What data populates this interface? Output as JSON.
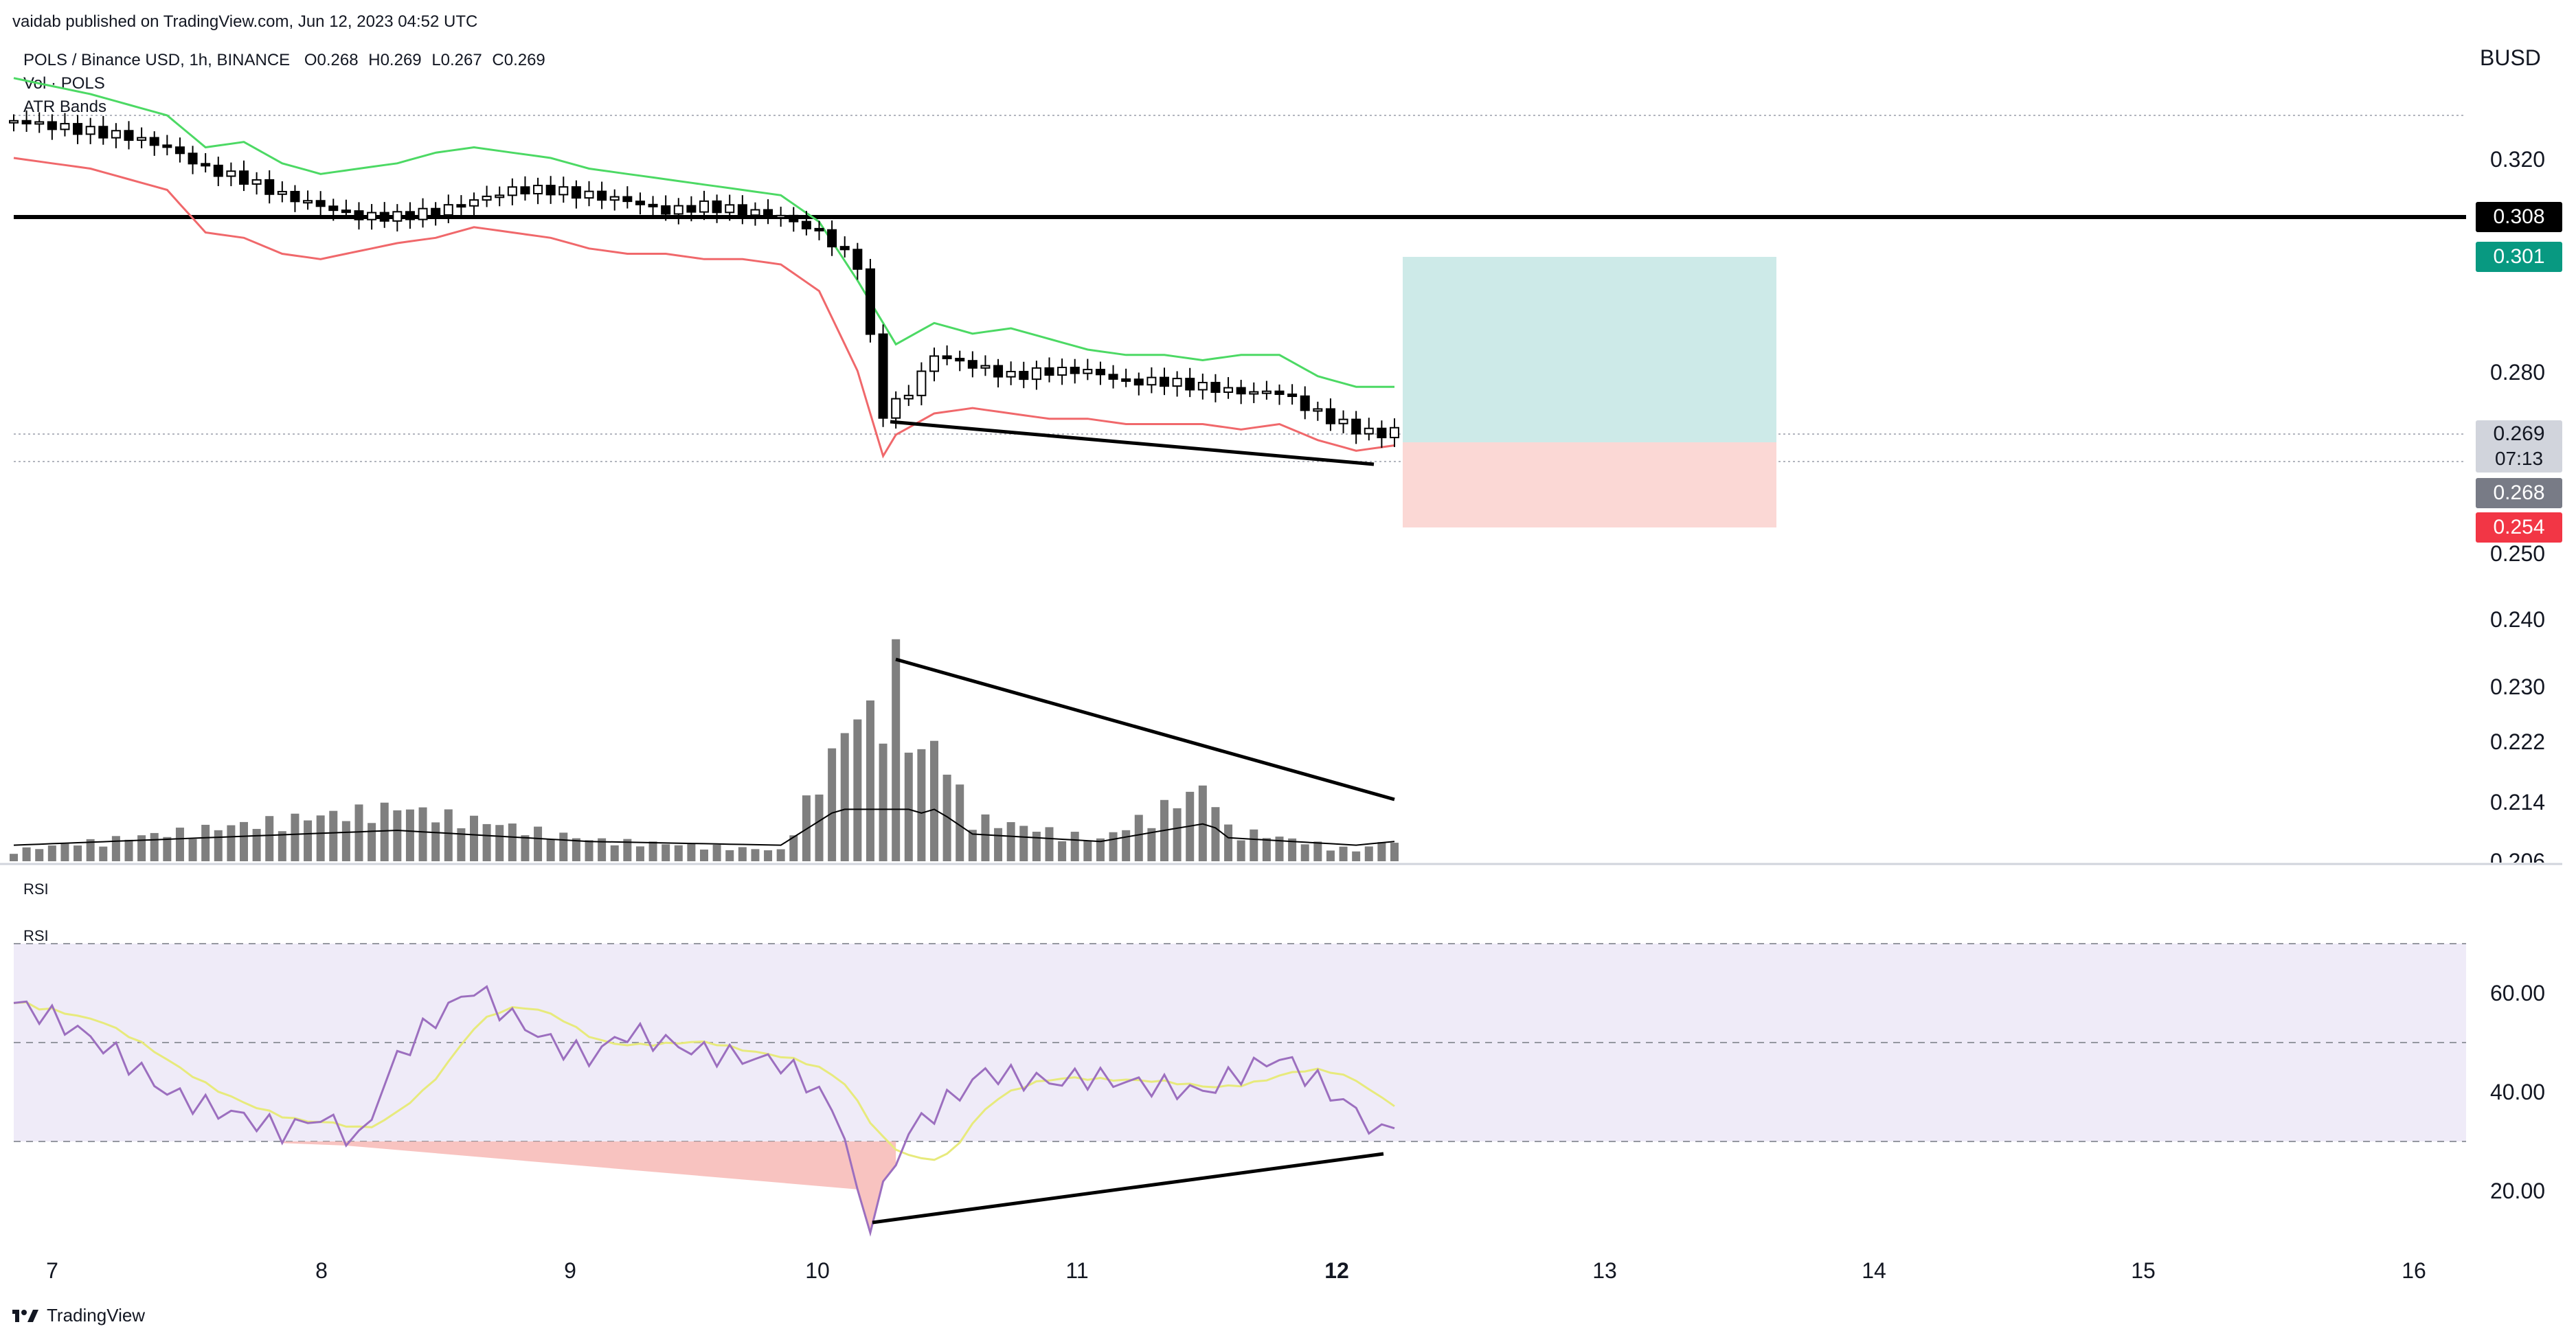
{
  "header": {
    "publisher_line": "vaidab published on TradingView.com, Jun 12, 2023 04:52 UTC"
  },
  "legend": {
    "symbol_line": "POLS / Binance USD, 1h, BINANCE",
    "open": "O0.268",
    "high": "H0.269",
    "low": "L0.267",
    "close": "C0.269",
    "volume": "Vol · POLS",
    "atr": "ATR Bands"
  },
  "currency": "BUSD",
  "price_tags": {
    "resistance": "0.308",
    "target": "0.301",
    "last": "0.269",
    "countdown": "07:13",
    "prev": "0.268",
    "stop": "0.254"
  },
  "price_axis_labels": [
    "0.320",
    "0.280",
    "0.250",
    "0.240",
    "0.230",
    "0.222",
    "0.214",
    "0.206"
  ],
  "rsi": {
    "pane_title_1": "RSI",
    "pane_title_2": "RSI",
    "axis_labels": [
      "60.00",
      "40.00",
      "20.00"
    ]
  },
  "date_labels": [
    "7",
    "8",
    "9",
    "10",
    "11",
    "12",
    "13",
    "14",
    "15",
    "16"
  ],
  "branding": {
    "logo_text": "TradingView"
  },
  "colors": {
    "atr_upper": "#4cd964",
    "atr_lower": "#f0686b",
    "target_zone": "#cdeae8",
    "stop_zone": "#fbd8d5",
    "tag_target": "#089981",
    "tag_stop": "#f23645",
    "tag_prev": "#787b86",
    "tag_last": "#d1d4dc",
    "rsi_line": "#9c6fbf",
    "rsi_ma": "#e7ea7c",
    "rsi_band": "#efebf8",
    "volume_bar": "#7f7f7f"
  },
  "chart_data": {
    "type": "candlestick",
    "symbol": "POLS / Binance USD",
    "interval": "1h",
    "price_axis_ticks": [
      0.32,
      0.28,
      0.25,
      0.24,
      0.23,
      0.222,
      0.214,
      0.206
    ],
    "horizontal_line": 0.308,
    "position": {
      "entry": 0.269,
      "target": 0.301,
      "stop": 0.254
    },
    "close_path": [
      [
        0,
        0.327
      ],
      [
        6,
        0.326
      ],
      [
        12,
        0.325
      ],
      [
        18,
        0.324
      ],
      [
        24,
        0.322
      ],
      [
        30,
        0.318
      ],
      [
        36,
        0.316
      ],
      [
        42,
        0.313
      ],
      [
        48,
        0.311
      ],
      [
        54,
        0.309
      ],
      [
        60,
        0.309
      ],
      [
        66,
        0.31
      ],
      [
        72,
        0.312
      ],
      [
        78,
        0.314
      ],
      [
        84,
        0.314
      ],
      [
        90,
        0.313
      ],
      [
        96,
        0.312
      ],
      [
        102,
        0.31
      ],
      [
        108,
        0.311
      ],
      [
        114,
        0.31
      ],
      [
        120,
        0.309
      ],
      [
        126,
        0.306
      ],
      [
        132,
        0.3
      ],
      [
        134,
        0.286
      ],
      [
        136,
        0.272
      ],
      [
        140,
        0.276
      ],
      [
        144,
        0.283
      ],
      [
        150,
        0.281
      ],
      [
        156,
        0.279
      ],
      [
        162,
        0.28
      ],
      [
        168,
        0.28
      ],
      [
        174,
        0.278
      ],
      [
        180,
        0.278
      ],
      [
        186,
        0.277
      ],
      [
        192,
        0.276
      ],
      [
        198,
        0.276
      ],
      [
        204,
        0.272
      ],
      [
        210,
        0.269
      ],
      [
        214,
        0.268
      ],
      [
        216,
        0.269
      ]
    ],
    "atr_upper": [
      [
        0,
        0.335
      ],
      [
        12,
        0.332
      ],
      [
        24,
        0.328
      ],
      [
        30,
        0.322
      ],
      [
        36,
        0.323
      ],
      [
        42,
        0.319
      ],
      [
        48,
        0.317
      ],
      [
        60,
        0.319
      ],
      [
        66,
        0.321
      ],
      [
        72,
        0.322
      ],
      [
        78,
        0.321
      ],
      [
        84,
        0.32
      ],
      [
        90,
        0.318
      ],
      [
        96,
        0.317
      ],
      [
        102,
        0.316
      ],
      [
        108,
        0.315
      ],
      [
        114,
        0.314
      ],
      [
        120,
        0.313
      ],
      [
        126,
        0.308
      ],
      [
        132,
        0.297
      ],
      [
        136,
        0.289
      ],
      [
        138,
        0.285
      ],
      [
        144,
        0.289
      ],
      [
        150,
        0.287
      ],
      [
        156,
        0.288
      ],
      [
        162,
        0.286
      ],
      [
        168,
        0.284
      ],
      [
        174,
        0.283
      ],
      [
        180,
        0.283
      ],
      [
        186,
        0.282
      ],
      [
        192,
        0.283
      ],
      [
        198,
        0.283
      ],
      [
        204,
        0.279
      ],
      [
        210,
        0.277
      ],
      [
        216,
        0.277
      ]
    ],
    "atr_lower": [
      [
        0,
        0.32
      ],
      [
        12,
        0.318
      ],
      [
        24,
        0.314
      ],
      [
        30,
        0.306
      ],
      [
        36,
        0.305
      ],
      [
        42,
        0.302
      ],
      [
        48,
        0.301
      ],
      [
        60,
        0.304
      ],
      [
        66,
        0.305
      ],
      [
        72,
        0.307
      ],
      [
        78,
        0.306
      ],
      [
        84,
        0.305
      ],
      [
        90,
        0.303
      ],
      [
        96,
        0.302
      ],
      [
        102,
        0.302
      ],
      [
        108,
        0.301
      ],
      [
        114,
        0.301
      ],
      [
        120,
        0.3
      ],
      [
        126,
        0.295
      ],
      [
        132,
        0.28
      ],
      [
        136,
        0.264
      ],
      [
        138,
        0.268
      ],
      [
        144,
        0.272
      ],
      [
        150,
        0.273
      ],
      [
        156,
        0.272
      ],
      [
        162,
        0.271
      ],
      [
        168,
        0.271
      ],
      [
        174,
        0.27
      ],
      [
        180,
        0.27
      ],
      [
        186,
        0.27
      ],
      [
        192,
        0.269
      ],
      [
        198,
        0.27
      ],
      [
        204,
        0.267
      ],
      [
        210,
        0.265
      ],
      [
        216,
        0.266
      ]
    ],
    "volume_peaks": [
      [
        0,
        1
      ],
      [
        30,
        3
      ],
      [
        60,
        5
      ],
      [
        90,
        2
      ],
      [
        120,
        1
      ],
      [
        132,
        14
      ],
      [
        135,
        13
      ],
      [
        138,
        18
      ],
      [
        141,
        9
      ],
      [
        144,
        11
      ],
      [
        150,
        4
      ],
      [
        160,
        3
      ],
      [
        170,
        2
      ],
      [
        180,
        5
      ],
      [
        187,
        7
      ],
      [
        190,
        3
      ],
      [
        200,
        2
      ],
      [
        210,
        1
      ],
      [
        216,
        2
      ]
    ],
    "rsi": {
      "upper_band": 70,
      "mid": 50,
      "lower_band": 30,
      "axis_ticks": [
        60,
        40,
        20
      ],
      "values": [
        [
          0,
          58
        ],
        [
          6,
          55
        ],
        [
          12,
          51
        ],
        [
          18,
          46
        ],
        [
          24,
          40
        ],
        [
          30,
          37
        ],
        [
          36,
          35
        ],
        [
          42,
          32
        ],
        [
          48,
          35
        ],
        [
          54,
          30
        ],
        [
          60,
          47
        ],
        [
          66,
          55
        ],
        [
          72,
          61
        ],
        [
          78,
          55
        ],
        [
          84,
          50
        ],
        [
          90,
          47
        ],
        [
          96,
          52
        ],
        [
          102,
          50
        ],
        [
          108,
          48
        ],
        [
          114,
          47
        ],
        [
          120,
          46
        ],
        [
          126,
          40
        ],
        [
          130,
          32
        ],
        [
          132,
          18
        ],
        [
          134,
          14
        ],
        [
          136,
          20
        ],
        [
          140,
          32
        ],
        [
          146,
          38
        ],
        [
          152,
          44
        ],
        [
          156,
          43
        ],
        [
          162,
          42
        ],
        [
          168,
          43
        ],
        [
          174,
          42
        ],
        [
          180,
          41
        ],
        [
          186,
          40
        ],
        [
          192,
          44
        ],
        [
          198,
          47
        ],
        [
          204,
          42
        ],
        [
          210,
          36
        ],
        [
          214,
          31
        ],
        [
          216,
          35
        ]
      ]
    }
  }
}
